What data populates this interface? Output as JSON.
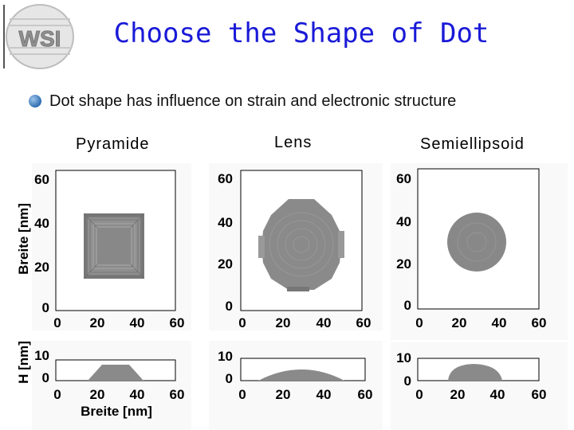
{
  "logo": {
    "text": "WSI"
  },
  "title": "Choose the Shape of Dot",
  "bullet": {
    "text": "Dot shape has influence on strain and electronic structure"
  },
  "columns": [
    {
      "label": "Pyramide"
    },
    {
      "label": "Lens"
    },
    {
      "label": "Semiellipsoid"
    }
  ],
  "axes": {
    "y_top_label": "Breite [nm]",
    "y_bottom_label": "H [nm]",
    "x_bottom_label": "Breite [nm]",
    "top_y_ticks": [
      "60",
      "40",
      "20",
      "0"
    ],
    "top_x_ticks": [
      "0",
      "20",
      "40",
      "60"
    ],
    "bottom_y_ticks": [
      "10",
      "0"
    ],
    "bottom_x_ticks": [
      "0",
      "20",
      "40",
      "60"
    ]
  },
  "colors": {
    "title": "#1a1ad8",
    "dot_gray": "#8a8a8a",
    "panel_bg": "#f7f7f7"
  }
}
